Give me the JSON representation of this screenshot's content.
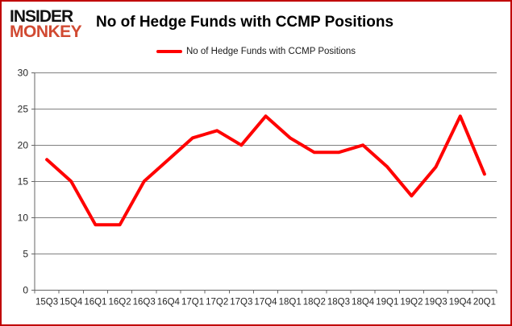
{
  "page": {
    "logo": {
      "line1": "INSIDER",
      "line2": "MONKEY"
    },
    "title": "No of Hedge Funds with CCMP Positions",
    "legend": {
      "label": "No of Hedge Funds with CCMP Positions"
    }
  },
  "colors": {
    "background": "#ffffff",
    "page_border": "#c00000",
    "logo_text": "#121212",
    "logo_accent": "#d14a32",
    "series_line": "#ff0000",
    "gridline": "#808080",
    "axis": "#666666",
    "tick_label": "#262626"
  },
  "chart_data": {
    "type": "line",
    "title": "No of Hedge Funds with CCMP Positions",
    "categories": [
      "15Q3",
      "15Q4",
      "16Q1",
      "16Q2",
      "16Q3",
      "16Q4",
      "17Q1",
      "17Q2",
      "17Q3",
      "17Q4",
      "18Q1",
      "18Q2",
      "18Q3",
      "18Q4",
      "19Q1",
      "19Q2",
      "19Q3",
      "19Q4",
      "20Q1"
    ],
    "series": [
      {
        "name": "No of Hedge Funds with CCMP Positions",
        "color": "#ff0000",
        "values": [
          18,
          15,
          9,
          9,
          15,
          18,
          21,
          22,
          20,
          24,
          21,
          19,
          19,
          20,
          17,
          13,
          17,
          24,
          16
        ]
      }
    ],
    "xlabel": "",
    "ylabel": "",
    "ylim": [
      0,
      30
    ],
    "yticks": [
      0,
      5,
      10,
      15,
      20,
      25,
      30
    ],
    "grid": true,
    "legend_position": "top-center"
  }
}
